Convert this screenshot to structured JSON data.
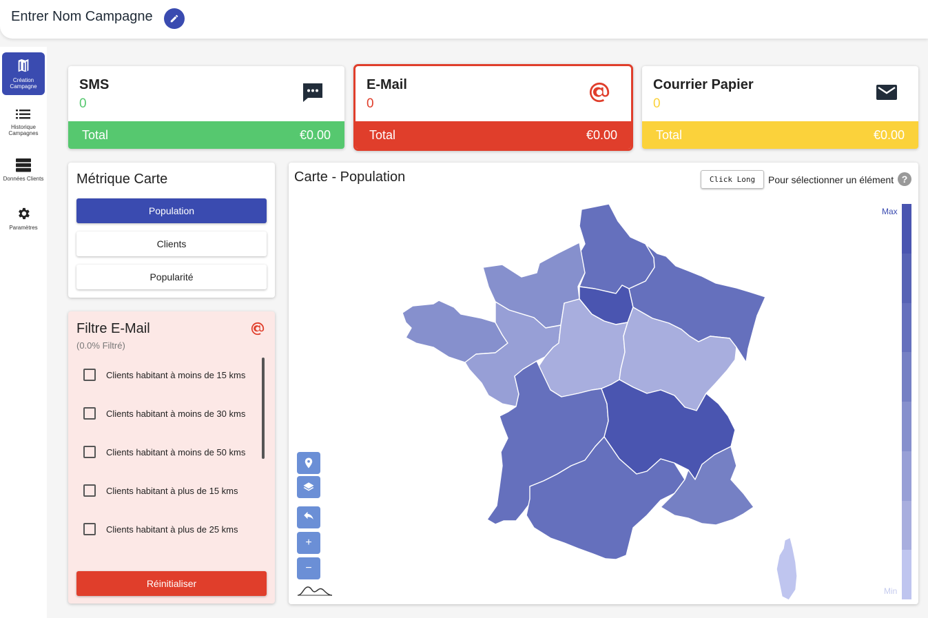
{
  "header": {
    "campaign_name": "Entrer Nom Campagne"
  },
  "sidebar": {
    "items": [
      {
        "label": "Création Campagne",
        "icon": "map-icon",
        "active": true
      },
      {
        "label": "Historique Campagnes",
        "icon": "list-icon",
        "active": false
      },
      {
        "label": "Données Clients",
        "icon": "database-icon",
        "active": false
      },
      {
        "label": "Paramètres",
        "icon": "gear-icon",
        "active": false
      }
    ]
  },
  "channels": [
    {
      "name": "SMS",
      "count": "0",
      "total_label": "Total",
      "total_value": "€0.00",
      "color": "#56c86f",
      "icon": "chat-icon"
    },
    {
      "name": "E-Mail",
      "count": "0",
      "total_label": "Total",
      "total_value": "€0.00",
      "color": "#e03e2b",
      "icon": "at-icon",
      "selected": true
    },
    {
      "name": "Courrier Papier",
      "count": "0",
      "total_label": "Total",
      "total_value": "€0.00",
      "color": "#fbd23b",
      "icon": "envelope-icon"
    }
  ],
  "metric": {
    "title": "Métrique Carte",
    "options": [
      {
        "label": "Population",
        "active": true
      },
      {
        "label": "Clients",
        "active": false
      },
      {
        "label": "Popularité",
        "active": false
      }
    ]
  },
  "filter": {
    "title": "Filtre E-Mail",
    "subtitle": "(0.0% Filtré)",
    "items": [
      {
        "label": "Clients habitant à moins de 15 kms",
        "checked": false
      },
      {
        "label": "Clients habitant à moins de 30 kms",
        "checked": false
      },
      {
        "label": "Clients habitant à moins de 50 kms",
        "checked": false
      },
      {
        "label": "Clients habitant à plus de 15 kms",
        "checked": false
      },
      {
        "label": "Clients habitant à plus de 25 kms",
        "checked": false
      }
    ],
    "reset_label": "Réinitialiser"
  },
  "map": {
    "title": "Carte - Population",
    "click_long": "Click Long",
    "hint": "Pour sélectionner un élément",
    "help": "?",
    "legend_max": "Max",
    "legend_min": "Min",
    "legend_colors": [
      "#4a55b0",
      "#5763b5",
      "#6570bd",
      "#7580c4",
      "#8690cd",
      "#979fd6",
      "#a8aede",
      "#bfc5ef"
    ],
    "controls": [
      "location-icon",
      "layers-icon",
      "undo-icon",
      "zoom-in-icon",
      "zoom-out-icon",
      "terrain-icon"
    ],
    "zoom_in": "+",
    "zoom_out": "−"
  }
}
